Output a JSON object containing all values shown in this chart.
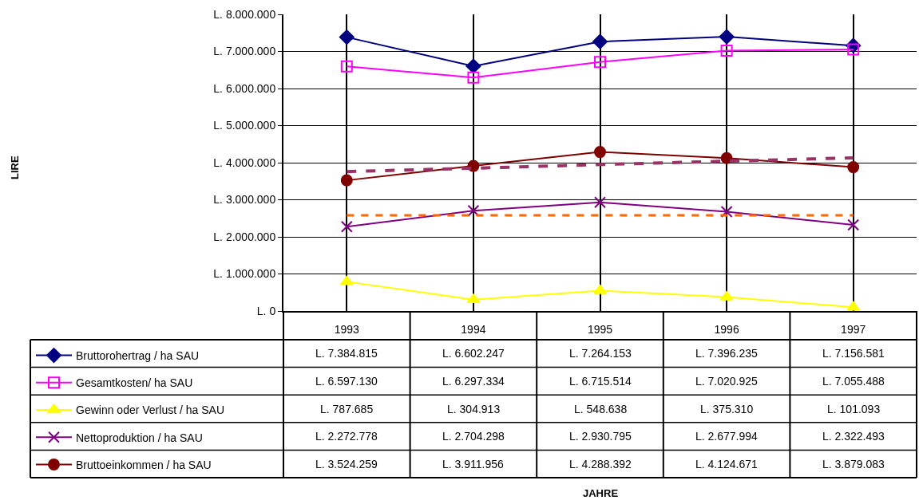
{
  "chart_data": {
    "type": "line",
    "annotations": [
      "JAHRE",
      "LIRE"
    ],
    "categories": [
      "1993",
      "1994",
      "1995",
      "1996",
      "1997"
    ],
    "series": [
      {
        "name": "Bruttorohertrag / ha SAU",
        "color": "#000080",
        "marker": "diamond",
        "values": [
          7384815,
          6602247,
          7264153,
          7396235,
          7156581
        ],
        "value_labels": [
          "L. 7.384.815",
          "L. 6.602.247",
          "L. 7.264.153",
          "L. 7.396.235",
          "L. 7.156.581"
        ]
      },
      {
        "name": "Gesamtkosten/ ha SAU",
        "color": "#ff00ff",
        "marker": "square",
        "values": [
          6597130,
          6297334,
          6715514,
          7020925,
          7055488
        ],
        "value_labels": [
          "L. 6.597.130",
          "L. 6.297.334",
          "L. 6.715.514",
          "L. 7.020.925",
          "L. 7.055.488"
        ]
      },
      {
        "name": "Gewinn oder Verlust / ha SAU",
        "color": "#ffff00",
        "marker": "triangle",
        "values": [
          787685,
          304913,
          548638,
          375310,
          101093
        ],
        "value_labels": [
          "L. 787.685",
          "L. 304.913",
          "L. 548.638",
          "L. 375.310",
          "L. 101.093"
        ]
      },
      {
        "name": "Nettoproduktion / ha SAU",
        "color": "#800080",
        "marker": "cross",
        "values": [
          2272778,
          2704298,
          2930795,
          2677994,
          2322493
        ],
        "value_labels": [
          "L. 2.272.778",
          "L. 2.704.298",
          "L. 2.930.795",
          "L. 2.677.994",
          "L. 2.322.493"
        ]
      },
      {
        "name": "Bruttoeinkommen / ha SAU",
        "color": "#800000",
        "marker": "circle",
        "values": [
          3524259,
          3911956,
          4288392,
          4124671,
          3879083
        ],
        "value_labels": [
          "L. 3.524.259",
          "L. 3.911.956",
          "L. 4.288.392",
          "L. 4.124.671",
          "L. 3.879.083"
        ]
      },
      {
        "type": "line",
        "color": "#993366",
        "marker": "none",
        "line_style": "dashed",
        "values": [
          3760000,
          3850000,
          3950000,
          4040000,
          4130000
        ]
      }
    ],
    "ref_lines": [
      {
        "axis": "y",
        "value": 2580000,
        "color": "#ff6600",
        "line_style": "dashed"
      }
    ],
    "ylim": [
      0,
      8000000
    ],
    "yticks": [
      {
        "value": 0,
        "label": "L. 0"
      },
      {
        "value": 1000000,
        "label": "L. 1.000.000"
      },
      {
        "value": 2000000,
        "label": "L. 2.000.000"
      },
      {
        "value": 3000000,
        "label": "L. 3.000.000"
      },
      {
        "value": 4000000,
        "label": "L. 4.000.000"
      },
      {
        "value": 5000000,
        "label": "L. 5.000.000"
      },
      {
        "value": 6000000,
        "label": "L. 6.000.000"
      },
      {
        "value": 7000000,
        "label": "L. 7.000.000"
      },
      {
        "value": 8000000,
        "label": "L. 8.000.000"
      }
    ],
    "grid": true,
    "legend": "bottom left",
    "line_style": "solid"
  }
}
